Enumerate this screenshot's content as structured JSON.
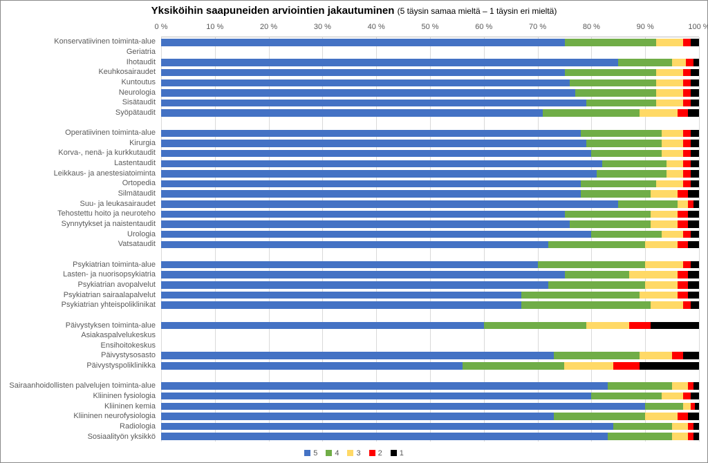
{
  "chart": {
    "type": "stacked-bar-horizontal-100pct",
    "title_main": "Yksiköihin saapuneiden arviointien jakautuminen ",
    "title_sub": "(5 täysin samaa mieltä – 1 täysin eri mieltä)",
    "title_main_fontsize": 15,
    "title_sub_fontsize": 12,
    "background_color": "#ffffff",
    "grid_color": "#d9d9d9",
    "axis_label_color": "#595959",
    "label_fontsize": 11,
    "xlim": [
      0,
      100
    ],
    "xtick_step": 10,
    "xtick_suffix": " %",
    "bar_height_ratio": 0.72,
    "series": [
      {
        "key": "5",
        "label": "5",
        "color": "#4472c4"
      },
      {
        "key": "4",
        "label": "4",
        "color": "#70ad47"
      },
      {
        "key": "3",
        "label": "3",
        "color": "#ffd966"
      },
      {
        "key": "2",
        "label": "2",
        "color": "#ff0000"
      },
      {
        "key": "1",
        "label": "1",
        "color": "#000000"
      }
    ],
    "categories": [
      {
        "label": "Konservatiivinen toiminta-alue",
        "values": [
          75,
          17,
          5,
          1.5,
          1.5
        ]
      },
      {
        "label": "Geriatria",
        "values": null
      },
      {
        "label": "Ihotaudit",
        "values": [
          85,
          10,
          2.5,
          1.5,
          1
        ]
      },
      {
        "label": "Keuhkosairaudet",
        "values": [
          75,
          17,
          5,
          1.5,
          1.5
        ]
      },
      {
        "label": "Kuntoutus",
        "values": [
          76,
          16,
          5,
          1.5,
          1.5
        ]
      },
      {
        "label": "Neurologia",
        "values": [
          77,
          15,
          5,
          1.5,
          1.5
        ]
      },
      {
        "label": "Sisätaudit",
        "values": [
          79,
          13,
          5,
          1.5,
          1.5
        ]
      },
      {
        "label": "Syöpätaudit",
        "values": [
          71,
          18,
          7,
          2,
          2
        ]
      },
      {
        "label": "",
        "values": null
      },
      {
        "label": "Operatiivinen toiminta-alue",
        "values": [
          78,
          15,
          4,
          1.5,
          1.5
        ]
      },
      {
        "label": "Kirurgia",
        "values": [
          79,
          14,
          4,
          1.5,
          1.5
        ]
      },
      {
        "label": "Korva-, nenä- ja kurkkutaudit",
        "values": [
          80,
          13,
          4,
          1.5,
          1.5
        ]
      },
      {
        "label": "Lastentaudit",
        "values": [
          82,
          12,
          3,
          1.5,
          1.5
        ]
      },
      {
        "label": "Leikkaus- ja anestesiatoiminta",
        "values": [
          81,
          13,
          3,
          1.5,
          1.5
        ]
      },
      {
        "label": "Ortopedia",
        "values": [
          78,
          14,
          5,
          1.5,
          1.5
        ]
      },
      {
        "label": "Silmätaudit",
        "values": [
          78,
          13,
          5,
          2,
          2
        ]
      },
      {
        "label": "Suu- ja leukasairaudet",
        "values": [
          85,
          11,
          2,
          1,
          1
        ]
      },
      {
        "label": "Tehostettu hoito ja neuroteho",
        "values": [
          75,
          16,
          5,
          2,
          2
        ]
      },
      {
        "label": "Synnytykset ja naistentaudit",
        "values": [
          76,
          15,
          5,
          2,
          2
        ]
      },
      {
        "label": "Urologia",
        "values": [
          80,
          13,
          4,
          1.5,
          1.5
        ]
      },
      {
        "label": "Vatsataudit",
        "values": [
          72,
          18,
          6,
          2,
          2
        ]
      },
      {
        "label": "",
        "values": null
      },
      {
        "label": "Psykiatrian toiminta-alue",
        "values": [
          70,
          20,
          7,
          1.5,
          1.5
        ]
      },
      {
        "label": "Lasten- ja nuorisopsykiatria",
        "values": [
          75,
          12,
          9,
          2,
          2
        ]
      },
      {
        "label": "Psykiatrian avopalvelut",
        "values": [
          72,
          18,
          6,
          2,
          2
        ]
      },
      {
        "label": "Psykiatrian sairaalapalvelut",
        "values": [
          67,
          22,
          7,
          2,
          2
        ]
      },
      {
        "label": "Psykiatrian yhteispoliklinikat",
        "values": [
          67,
          24,
          6,
          1.5,
          1.5
        ]
      },
      {
        "label": "",
        "values": null
      },
      {
        "label": "Päivystyksen toiminta-alue",
        "values": [
          60,
          19,
          8,
          4,
          9
        ]
      },
      {
        "label": "Asiakaspalvelukeskus",
        "values": null
      },
      {
        "label": "Ensihoitokeskus",
        "values": null
      },
      {
        "label": "Päivystysosasto",
        "values": [
          73,
          16,
          6,
          2,
          3
        ]
      },
      {
        "label": "Päivystyspoliklinikka",
        "values": [
          56,
          19,
          9,
          5,
          11
        ]
      },
      {
        "label": "",
        "values": null
      },
      {
        "label": "Sairaanhoidollisten palvelujen toiminta-alue",
        "values": [
          83,
          12,
          3,
          1,
          1
        ]
      },
      {
        "label": "Kliininen fysiologia",
        "values": [
          80,
          13,
          4,
          1.5,
          1.5
        ]
      },
      {
        "label": "Kliininen kemia",
        "values": [
          90,
          7,
          1.5,
          0.75,
          0.75
        ]
      },
      {
        "label": "Kliininen neurofysiologia",
        "values": [
          73,
          17,
          6,
          2,
          2
        ]
      },
      {
        "label": "Radiologia",
        "values": [
          84,
          11,
          3,
          1,
          1
        ]
      },
      {
        "label": "Sosiaalityön yksikkö",
        "values": [
          83,
          12,
          3,
          1,
          1
        ]
      }
    ]
  }
}
